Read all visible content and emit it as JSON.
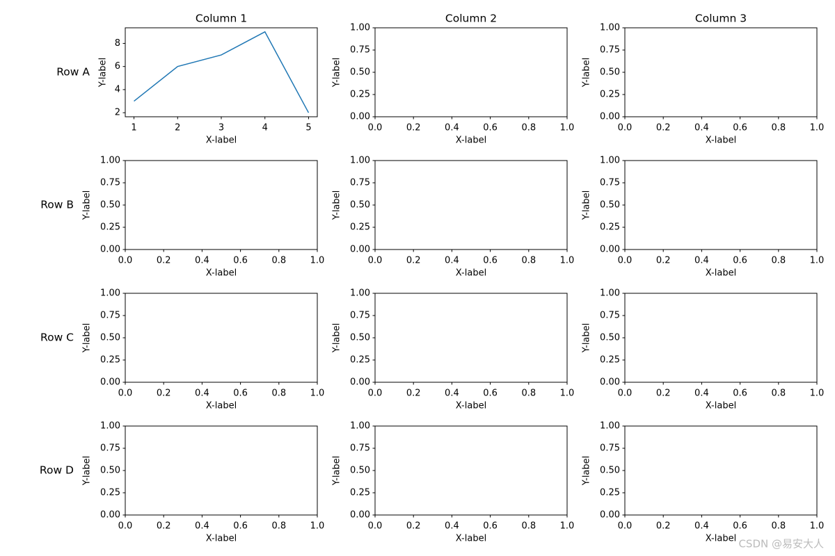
{
  "chart_data": [
    {
      "type": "line",
      "title": "Column 1",
      "row_label": "Row A",
      "xlabel": "X-label",
      "ylabel": "Y-label",
      "x": [
        1,
        2,
        3,
        4,
        5
      ],
      "series": [
        {
          "color": "#1f77b4",
          "values": [
            3,
            6,
            7,
            9,
            2
          ]
        }
      ],
      "xlim": [
        0.8,
        5.2
      ],
      "ylim": [
        1.65,
        9.35
      ],
      "xticks": [
        1,
        2,
        3,
        4,
        5
      ],
      "yticks": [
        2,
        4,
        6,
        8
      ]
    },
    {
      "type": "line",
      "title": "Column 2",
      "xlabel": "X-label",
      "ylabel": "Y-label",
      "xlim": [
        0,
        1
      ],
      "ylim": [
        0,
        1
      ],
      "xticks": [
        {
          "value": 0,
          "label": "0.0"
        },
        {
          "value": 0.2,
          "label": "0.2"
        },
        {
          "value": 0.4,
          "label": "0.4"
        },
        {
          "value": 0.6,
          "label": "0.6"
        },
        {
          "value": 0.8,
          "label": "0.8"
        },
        {
          "value": 1,
          "label": "1.0"
        }
      ],
      "yticks": [
        {
          "value": 0,
          "label": "0.00"
        },
        {
          "value": 0.25,
          "label": "0.25"
        },
        {
          "value": 0.5,
          "label": "0.50"
        },
        {
          "value": 0.75,
          "label": "0.75"
        },
        {
          "value": 1,
          "label": "1.00"
        }
      ]
    },
    {
      "type": "line",
      "title": "Column 3",
      "xlabel": "X-label",
      "ylabel": "Y-label",
      "xlim": [
        0,
        1
      ],
      "ylim": [
        0,
        1
      ],
      "xticks": [
        {
          "value": 0,
          "label": "0.0"
        },
        {
          "value": 0.2,
          "label": "0.2"
        },
        {
          "value": 0.4,
          "label": "0.4"
        },
        {
          "value": 0.6,
          "label": "0.6"
        },
        {
          "value": 0.8,
          "label": "0.8"
        },
        {
          "value": 1,
          "label": "1.0"
        }
      ],
      "yticks": [
        {
          "value": 0,
          "label": "0.00"
        },
        {
          "value": 0.25,
          "label": "0.25"
        },
        {
          "value": 0.5,
          "label": "0.50"
        },
        {
          "value": 0.75,
          "label": "0.75"
        },
        {
          "value": 1,
          "label": "1.00"
        }
      ]
    },
    {
      "type": "line",
      "row_label": "Row B",
      "xlabel": "X-label",
      "ylabel": "Y-label",
      "xlim": [
        0,
        1
      ],
      "ylim": [
        0,
        1
      ],
      "xticks": [
        {
          "value": 0,
          "label": "0.0"
        },
        {
          "value": 0.2,
          "label": "0.2"
        },
        {
          "value": 0.4,
          "label": "0.4"
        },
        {
          "value": 0.6,
          "label": "0.6"
        },
        {
          "value": 0.8,
          "label": "0.8"
        },
        {
          "value": 1,
          "label": "1.0"
        }
      ],
      "yticks": [
        {
          "value": 0,
          "label": "0.00"
        },
        {
          "value": 0.25,
          "label": "0.25"
        },
        {
          "value": 0.5,
          "label": "0.50"
        },
        {
          "value": 0.75,
          "label": "0.75"
        },
        {
          "value": 1,
          "label": "1.00"
        }
      ]
    },
    {
      "type": "line",
      "xlabel": "X-label",
      "ylabel": "Y-label",
      "xlim": [
        0,
        1
      ],
      "ylim": [
        0,
        1
      ],
      "xticks": [
        {
          "value": 0,
          "label": "0.0"
        },
        {
          "value": 0.2,
          "label": "0.2"
        },
        {
          "value": 0.4,
          "label": "0.4"
        },
        {
          "value": 0.6,
          "label": "0.6"
        },
        {
          "value": 0.8,
          "label": "0.8"
        },
        {
          "value": 1,
          "label": "1.0"
        }
      ],
      "yticks": [
        {
          "value": 0,
          "label": "0.00"
        },
        {
          "value": 0.25,
          "label": "0.25"
        },
        {
          "value": 0.5,
          "label": "0.50"
        },
        {
          "value": 0.75,
          "label": "0.75"
        },
        {
          "value": 1,
          "label": "1.00"
        }
      ]
    },
    {
      "type": "line",
      "xlabel": "X-label",
      "ylabel": "Y-label",
      "xlim": [
        0,
        1
      ],
      "ylim": [
        0,
        1
      ],
      "xticks": [
        {
          "value": 0,
          "label": "0.0"
        },
        {
          "value": 0.2,
          "label": "0.2"
        },
        {
          "value": 0.4,
          "label": "0.4"
        },
        {
          "value": 0.6,
          "label": "0.6"
        },
        {
          "value": 0.8,
          "label": "0.8"
        },
        {
          "value": 1,
          "label": "1.0"
        }
      ],
      "yticks": [
        {
          "value": 0,
          "label": "0.00"
        },
        {
          "value": 0.25,
          "label": "0.25"
        },
        {
          "value": 0.5,
          "label": "0.50"
        },
        {
          "value": 0.75,
          "label": "0.75"
        },
        {
          "value": 1,
          "label": "1.00"
        }
      ]
    },
    {
      "type": "line",
      "row_label": "Row C",
      "xlabel": "X-label",
      "ylabel": "Y-label",
      "xlim": [
        0,
        1
      ],
      "ylim": [
        0,
        1
      ],
      "xticks": [
        {
          "value": 0,
          "label": "0.0"
        },
        {
          "value": 0.2,
          "label": "0.2"
        },
        {
          "value": 0.4,
          "label": "0.4"
        },
        {
          "value": 0.6,
          "label": "0.6"
        },
        {
          "value": 0.8,
          "label": "0.8"
        },
        {
          "value": 1,
          "label": "1.0"
        }
      ],
      "yticks": [
        {
          "value": 0,
          "label": "0.00"
        },
        {
          "value": 0.25,
          "label": "0.25"
        },
        {
          "value": 0.5,
          "label": "0.50"
        },
        {
          "value": 0.75,
          "label": "0.75"
        },
        {
          "value": 1,
          "label": "1.00"
        }
      ]
    },
    {
      "type": "line",
      "xlabel": "X-label",
      "ylabel": "Y-label",
      "xlim": [
        0,
        1
      ],
      "ylim": [
        0,
        1
      ],
      "xticks": [
        {
          "value": 0,
          "label": "0.0"
        },
        {
          "value": 0.2,
          "label": "0.2"
        },
        {
          "value": 0.4,
          "label": "0.4"
        },
        {
          "value": 0.6,
          "label": "0.6"
        },
        {
          "value": 0.8,
          "label": "0.8"
        },
        {
          "value": 1,
          "label": "1.0"
        }
      ],
      "yticks": [
        {
          "value": 0,
          "label": "0.00"
        },
        {
          "value": 0.25,
          "label": "0.25"
        },
        {
          "value": 0.5,
          "label": "0.50"
        },
        {
          "value": 0.75,
          "label": "0.75"
        },
        {
          "value": 1,
          "label": "1.00"
        }
      ]
    },
    {
      "type": "line",
      "xlabel": "X-label",
      "ylabel": "Y-label",
      "xlim": [
        0,
        1
      ],
      "ylim": [
        0,
        1
      ],
      "xticks": [
        {
          "value": 0,
          "label": "0.0"
        },
        {
          "value": 0.2,
          "label": "0.2"
        },
        {
          "value": 0.4,
          "label": "0.4"
        },
        {
          "value": 0.6,
          "label": "0.6"
        },
        {
          "value": 0.8,
          "label": "0.8"
        },
        {
          "value": 1,
          "label": "1.0"
        }
      ],
      "yticks": [
        {
          "value": 0,
          "label": "0.00"
        },
        {
          "value": 0.25,
          "label": "0.25"
        },
        {
          "value": 0.5,
          "label": "0.50"
        },
        {
          "value": 0.75,
          "label": "0.75"
        },
        {
          "value": 1,
          "label": "1.00"
        }
      ]
    },
    {
      "type": "line",
      "row_label": "Row D",
      "xlabel": "X-label",
      "ylabel": "Y-label",
      "xlim": [
        0,
        1
      ],
      "ylim": [
        0,
        1
      ],
      "xticks": [
        {
          "value": 0,
          "label": "0.0"
        },
        {
          "value": 0.2,
          "label": "0.2"
        },
        {
          "value": 0.4,
          "label": "0.4"
        },
        {
          "value": 0.6,
          "label": "0.6"
        },
        {
          "value": 0.8,
          "label": "0.8"
        },
        {
          "value": 1,
          "label": "1.0"
        }
      ],
      "yticks": [
        {
          "value": 0,
          "label": "0.00"
        },
        {
          "value": 0.25,
          "label": "0.25"
        },
        {
          "value": 0.5,
          "label": "0.50"
        },
        {
          "value": 0.75,
          "label": "0.75"
        },
        {
          "value": 1,
          "label": "1.00"
        }
      ]
    },
    {
      "type": "line",
      "xlabel": "X-label",
      "ylabel": "Y-label",
      "xlim": [
        0,
        1
      ],
      "ylim": [
        0,
        1
      ],
      "xticks": [
        {
          "value": 0,
          "label": "0.0"
        },
        {
          "value": 0.2,
          "label": "0.2"
        },
        {
          "value": 0.4,
          "label": "0.4"
        },
        {
          "value": 0.6,
          "label": "0.6"
        },
        {
          "value": 0.8,
          "label": "0.8"
        },
        {
          "value": 1,
          "label": "1.0"
        }
      ],
      "yticks": [
        {
          "value": 0,
          "label": "0.00"
        },
        {
          "value": 0.25,
          "label": "0.25"
        },
        {
          "value": 0.5,
          "label": "0.50"
        },
        {
          "value": 0.75,
          "label": "0.75"
        },
        {
          "value": 1,
          "label": "1.00"
        }
      ]
    },
    {
      "type": "line",
      "xlabel": "X-label",
      "ylabel": "Y-label",
      "xlim": [
        0,
        1
      ],
      "ylim": [
        0,
        1
      ],
      "xticks": [
        {
          "value": 0,
          "label": "0.0"
        },
        {
          "value": 0.2,
          "label": "0.2"
        },
        {
          "value": 0.4,
          "label": "0.4"
        },
        {
          "value": 0.6,
          "label": "0.6"
        },
        {
          "value": 0.8,
          "label": "0.8"
        },
        {
          "value": 1,
          "label": "1.0"
        }
      ],
      "yticks": [
        {
          "value": 0,
          "label": "0.00"
        },
        {
          "value": 0.25,
          "label": "0.25"
        },
        {
          "value": 0.5,
          "label": "0.50"
        },
        {
          "value": 0.75,
          "label": "0.75"
        },
        {
          "value": 1,
          "label": "1.00"
        }
      ]
    }
  ],
  "watermark": "CSDN @易安大人"
}
